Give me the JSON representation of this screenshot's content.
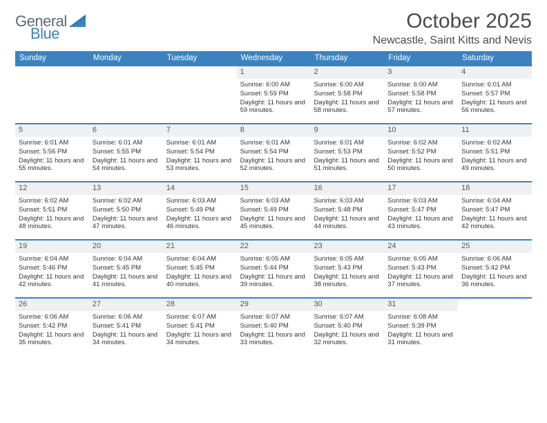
{
  "brand": {
    "word1": "General",
    "word2": "Blue"
  },
  "title": "October 2025",
  "location": "Newcastle, Saint Kitts and Nevis",
  "colors": {
    "header_blue": "#3b83c0",
    "daynum_bg": "#eef0f1",
    "rule": "#3b83c0",
    "text": "#333333",
    "logo_gray": "#5a6a73",
    "triangle": "#2f6fa8"
  },
  "days_of_week": [
    "Sunday",
    "Monday",
    "Tuesday",
    "Wednesday",
    "Thursday",
    "Friday",
    "Saturday"
  ],
  "labels": {
    "sunrise": "Sunrise:",
    "sunset": "Sunset:",
    "daylight": "Daylight:"
  },
  "weeks": [
    [
      null,
      null,
      null,
      {
        "n": "1",
        "sunrise": "6:00 AM",
        "sunset": "5:59 PM",
        "daylight": "11 hours and 59 minutes."
      },
      {
        "n": "2",
        "sunrise": "6:00 AM",
        "sunset": "5:58 PM",
        "daylight": "11 hours and 58 minutes."
      },
      {
        "n": "3",
        "sunrise": "6:00 AM",
        "sunset": "5:58 PM",
        "daylight": "11 hours and 57 minutes."
      },
      {
        "n": "4",
        "sunrise": "6:01 AM",
        "sunset": "5:57 PM",
        "daylight": "11 hours and 56 minutes."
      }
    ],
    [
      {
        "n": "5",
        "sunrise": "6:01 AM",
        "sunset": "5:56 PM",
        "daylight": "11 hours and 55 minutes."
      },
      {
        "n": "6",
        "sunrise": "6:01 AM",
        "sunset": "5:55 PM",
        "daylight": "11 hours and 54 minutes."
      },
      {
        "n": "7",
        "sunrise": "6:01 AM",
        "sunset": "5:54 PM",
        "daylight": "11 hours and 53 minutes."
      },
      {
        "n": "8",
        "sunrise": "6:01 AM",
        "sunset": "5:54 PM",
        "daylight": "11 hours and 52 minutes."
      },
      {
        "n": "9",
        "sunrise": "6:01 AM",
        "sunset": "5:53 PM",
        "daylight": "11 hours and 51 minutes."
      },
      {
        "n": "10",
        "sunrise": "6:02 AM",
        "sunset": "5:52 PM",
        "daylight": "11 hours and 50 minutes."
      },
      {
        "n": "11",
        "sunrise": "6:02 AM",
        "sunset": "5:51 PM",
        "daylight": "11 hours and 49 minutes."
      }
    ],
    [
      {
        "n": "12",
        "sunrise": "6:02 AM",
        "sunset": "5:51 PM",
        "daylight": "11 hours and 48 minutes."
      },
      {
        "n": "13",
        "sunrise": "6:02 AM",
        "sunset": "5:50 PM",
        "daylight": "11 hours and 47 minutes."
      },
      {
        "n": "14",
        "sunrise": "6:03 AM",
        "sunset": "5:49 PM",
        "daylight": "11 hours and 46 minutes."
      },
      {
        "n": "15",
        "sunrise": "6:03 AM",
        "sunset": "5:49 PM",
        "daylight": "11 hours and 45 minutes."
      },
      {
        "n": "16",
        "sunrise": "6:03 AM",
        "sunset": "5:48 PM",
        "daylight": "11 hours and 44 minutes."
      },
      {
        "n": "17",
        "sunrise": "6:03 AM",
        "sunset": "5:47 PM",
        "daylight": "11 hours and 43 minutes."
      },
      {
        "n": "18",
        "sunrise": "6:04 AM",
        "sunset": "5:47 PM",
        "daylight": "11 hours and 42 minutes."
      }
    ],
    [
      {
        "n": "19",
        "sunrise": "6:04 AM",
        "sunset": "5:46 PM",
        "daylight": "11 hours and 42 minutes."
      },
      {
        "n": "20",
        "sunrise": "6:04 AM",
        "sunset": "5:45 PM",
        "daylight": "11 hours and 41 minutes."
      },
      {
        "n": "21",
        "sunrise": "6:04 AM",
        "sunset": "5:45 PM",
        "daylight": "11 hours and 40 minutes."
      },
      {
        "n": "22",
        "sunrise": "6:05 AM",
        "sunset": "5:44 PM",
        "daylight": "11 hours and 39 minutes."
      },
      {
        "n": "23",
        "sunrise": "6:05 AM",
        "sunset": "5:43 PM",
        "daylight": "11 hours and 38 minutes."
      },
      {
        "n": "24",
        "sunrise": "6:05 AM",
        "sunset": "5:43 PM",
        "daylight": "11 hours and 37 minutes."
      },
      {
        "n": "25",
        "sunrise": "6:06 AM",
        "sunset": "5:42 PM",
        "daylight": "11 hours and 36 minutes."
      }
    ],
    [
      {
        "n": "26",
        "sunrise": "6:06 AM",
        "sunset": "5:42 PM",
        "daylight": "11 hours and 35 minutes."
      },
      {
        "n": "27",
        "sunrise": "6:06 AM",
        "sunset": "5:41 PM",
        "daylight": "11 hours and 34 minutes."
      },
      {
        "n": "28",
        "sunrise": "6:07 AM",
        "sunset": "5:41 PM",
        "daylight": "11 hours and 34 minutes."
      },
      {
        "n": "29",
        "sunrise": "6:07 AM",
        "sunset": "5:40 PM",
        "daylight": "11 hours and 33 minutes."
      },
      {
        "n": "30",
        "sunrise": "6:07 AM",
        "sunset": "5:40 PM",
        "daylight": "11 hours and 32 minutes."
      },
      {
        "n": "31",
        "sunrise": "6:08 AM",
        "sunset": "5:39 PM",
        "daylight": "11 hours and 31 minutes."
      },
      null
    ]
  ]
}
